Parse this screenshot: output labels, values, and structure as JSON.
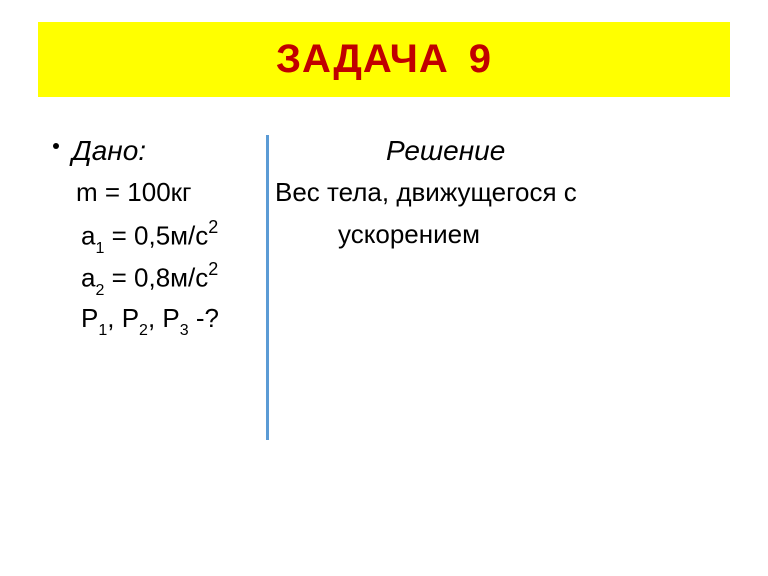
{
  "title": {
    "word": "ЗАДАЧА",
    "number": "9",
    "bg_color": "#ffff00",
    "text_color": "#c00000",
    "fontsize": 40
  },
  "given": {
    "label": "Дано:",
    "m": "m = 100кг",
    "a1_prefix": "a",
    "a1_sub": "1",
    "a1_value": " = 0,5м/с",
    "a1_sup": "2",
    "a2_prefix": "a",
    "a2_sub": "2",
    "a2_value": " = 0,8м/с",
    "a2_sup": "2",
    "p_p1": "P",
    "p_s1": "1",
    "p_sep1": ", ",
    "p_p2": "P",
    "p_s2": "2",
    "p_sep2": ", ",
    "p_p3": "P",
    "p_s3": "3",
    "p_tail": " -?"
  },
  "solution": {
    "label": "Решение",
    "line1": "Вес тела, движущегося с",
    "line2": "ускорением"
  },
  "divider": {
    "color": "#5b9bd5"
  },
  "body": {
    "background": "#ffffff",
    "text_color": "#000000",
    "fontsize": 26
  }
}
